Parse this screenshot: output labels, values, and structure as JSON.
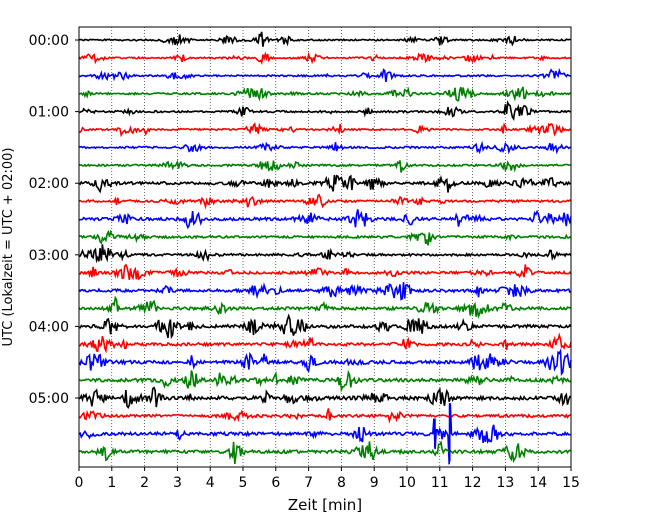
{
  "chart_data": {
    "type": "line",
    "title": "",
    "xlabel": "Zeit  [min]",
    "ylabel": "UTC (Lokalzeit = UTC + 02:00)",
    "xlim": [
      0,
      15
    ],
    "x_ticks": [
      0,
      1,
      2,
      3,
      4,
      5,
      6,
      7,
      8,
      9,
      10,
      11,
      12,
      13,
      14,
      15
    ],
    "y_ticks": [
      "00:00",
      "01:00",
      "02:00",
      "03:00",
      "04:00",
      "05:00"
    ],
    "grid": "vertical dotted lines at each minute",
    "legend": "none",
    "trace_minutes": 15,
    "trace_colors": [
      "#000000",
      "#ff0000",
      "#0000ff",
      "#008000"
    ],
    "traces": [
      {
        "label": "00:00",
        "color": "#000000",
        "amplitude": 0.25
      },
      {
        "label": "",
        "color": "#ff0000",
        "amplitude": 0.25
      },
      {
        "label": "",
        "color": "#0000ff",
        "amplitude": 0.25
      },
      {
        "label": "",
        "color": "#008000",
        "amplitude": 0.3
      },
      {
        "label": "01:00",
        "color": "#000000",
        "amplitude": 0.3
      },
      {
        "label": "",
        "color": "#ff0000",
        "amplitude": 0.25
      },
      {
        "label": "",
        "color": "#0000ff",
        "amplitude": 0.3
      },
      {
        "label": "",
        "color": "#008000",
        "amplitude": 0.3
      },
      {
        "label": "02:00",
        "color": "#000000",
        "amplitude": 0.45
      },
      {
        "label": "",
        "color": "#ff0000",
        "amplitude": 0.35
      },
      {
        "label": "",
        "color": "#0000ff",
        "amplitude": 0.45
      },
      {
        "label": "",
        "color": "#008000",
        "amplitude": 0.35
      },
      {
        "label": "03:00",
        "color": "#000000",
        "amplitude": 0.35
      },
      {
        "label": "",
        "color": "#ff0000",
        "amplitude": 0.4
      },
      {
        "label": "",
        "color": "#0000ff",
        "amplitude": 0.45
      },
      {
        "label": "",
        "color": "#008000",
        "amplitude": 0.45
      },
      {
        "label": "04:00",
        "color": "#000000",
        "amplitude": 0.5
      },
      {
        "label": "",
        "color": "#ff0000",
        "amplitude": 0.45
      },
      {
        "label": "",
        "color": "#0000ff",
        "amplitude": 0.5
      },
      {
        "label": "",
        "color": "#008000",
        "amplitude": 0.5
      },
      {
        "label": "05:00",
        "color": "#000000",
        "amplitude": 0.55
      },
      {
        "label": "",
        "color": "#ff0000",
        "amplitude": 0.45
      },
      {
        "label": "",
        "color": "#0000ff",
        "amplitude": 0.5
      },
      {
        "label": "",
        "color": "#008000",
        "amplitude": 0.5
      }
    ],
    "annotations": [
      {
        "trace": 22,
        "minute": 10.85,
        "kind": "spike",
        "amplitude": 1.7
      },
      {
        "trace": 22,
        "minute": 11.3,
        "kind": "spike",
        "amplitude": 3.4
      }
    ]
  }
}
